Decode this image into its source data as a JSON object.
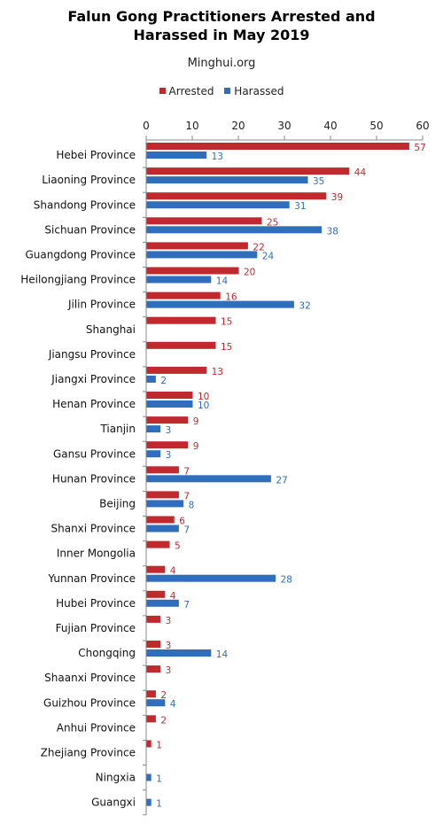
{
  "chart_data": {
    "type": "bar",
    "orientation": "horizontal",
    "title_lines": [
      "Falun Gong Practitioners Arrested and",
      "Harassed in May 2019"
    ],
    "subtitle": "Minghui.org",
    "xlim": [
      0,
      60
    ],
    "xticks": [
      "0",
      "10",
      "20",
      "30",
      "40",
      "50",
      "60"
    ],
    "legend_position": "top",
    "grid": false,
    "categories": [
      "Hebei Province",
      "Liaoning Province",
      "Shandong Province",
      "Sichuan Province",
      "Guangdong Province",
      "Heilongjiang Province",
      "Jilin Province",
      "Shanghai",
      "Jiangsu Province",
      "Jiangxi Province",
      "Henan Province",
      "Tianjin",
      "Gansu Province",
      "Hunan Province",
      "Beijing",
      "Shanxi Province",
      "Inner Mongolia",
      "Yunnan Province",
      "Hubei Province",
      "Fujian Province",
      "Chongqing",
      "Shaanxi Province",
      "Guizhou Province",
      "Anhui Province",
      "Zhejiang Province",
      "Ningxia",
      "Guangxi"
    ],
    "series": [
      {
        "name": "Arrested",
        "color": "#c0292e",
        "values": [
          57,
          44,
          39,
          25,
          22,
          20,
          16,
          15,
          15,
          13,
          10,
          9,
          9,
          7,
          7,
          6,
          5,
          4,
          4,
          3,
          3,
          3,
          2,
          2,
          1,
          null,
          null
        ]
      },
      {
        "name": "Harassed",
        "color": "#2f6ebd",
        "values": [
          13,
          35,
          31,
          38,
          24,
          14,
          32,
          null,
          null,
          2,
          10,
          3,
          3,
          27,
          8,
          7,
          null,
          28,
          7,
          null,
          14,
          null,
          4,
          null,
          null,
          1,
          1
        ]
      }
    ]
  }
}
